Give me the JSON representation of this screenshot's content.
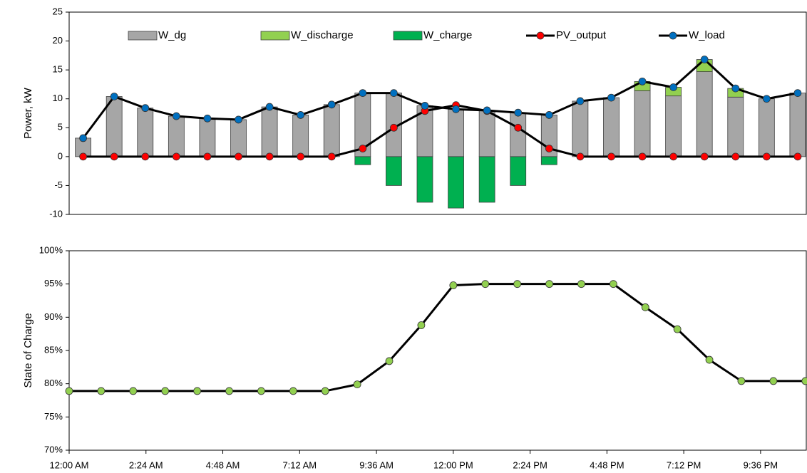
{
  "chart_data": [
    {
      "type": "combo",
      "ylabel": "Power, kW",
      "x": [
        0,
        1,
        2,
        3,
        4,
        5,
        6,
        7,
        8,
        9,
        10,
        11,
        12,
        13,
        14,
        15,
        16,
        17,
        18,
        19,
        20,
        21,
        22,
        23
      ],
      "xlim": [
        -0.45,
        23.3
      ],
      "ylim": [
        -10,
        25
      ],
      "yticks": [
        -10,
        -5,
        0,
        5,
        10,
        15,
        20,
        25
      ],
      "series": [
        {
          "name": "W_dg",
          "type": "bar",
          "color": "#a6a6a6",
          "values": [
            3.2,
            10.4,
            8.4,
            7.0,
            6.6,
            6.4,
            8.6,
            7.2,
            9.0,
            11.0,
            11.0,
            8.8,
            8.2,
            8.0,
            7.6,
            7.2,
            9.6,
            10.2,
            11.4,
            10.5,
            14.7,
            10.3,
            10.0,
            11.0
          ]
        },
        {
          "name": "W_discharge",
          "type": "bar",
          "color": "#92d050",
          "values": [
            0,
            0,
            0,
            0,
            0,
            0,
            0,
            0,
            0,
            0,
            0,
            0,
            0,
            0,
            0,
            0,
            0,
            0,
            1.6,
            1.5,
            2.1,
            1.5,
            0,
            0
          ]
        },
        {
          "name": "W_charge",
          "type": "bar",
          "color": "#00b050",
          "values": [
            0,
            0,
            0,
            0,
            0,
            0,
            0,
            0,
            0,
            -1.4,
            -5.0,
            -7.9,
            -8.9,
            -7.9,
            -5.0,
            -1.4,
            0,
            0,
            0,
            0,
            0,
            0,
            0,
            0
          ]
        },
        {
          "name": "PV_output",
          "type": "line",
          "color": "#ff0000",
          "line_color": "#000000",
          "values": [
            0,
            0,
            0,
            0,
            0,
            0,
            0,
            0,
            0,
            1.4,
            5.0,
            7.9,
            8.9,
            7.9,
            5.0,
            1.4,
            0,
            0,
            0,
            0,
            0,
            0,
            0,
            0
          ]
        },
        {
          "name": "W_load",
          "type": "line",
          "color": "#0070c0",
          "line_color": "#000000",
          "values": [
            3.2,
            10.4,
            8.4,
            7.0,
            6.6,
            6.4,
            8.6,
            7.2,
            9.0,
            11.0,
            11.0,
            8.8,
            8.2,
            8.0,
            7.6,
            7.2,
            9.6,
            10.2,
            13.0,
            12.0,
            16.8,
            11.8,
            10.0,
            11.0
          ]
        }
      ],
      "legend": "top"
    },
    {
      "type": "line",
      "ylabel": "State of Charge",
      "x": [
        0,
        1,
        2,
        3,
        4,
        5,
        6,
        7,
        8,
        9,
        10,
        11,
        12,
        13,
        14,
        15,
        16,
        17,
        18,
        19,
        20,
        21,
        22,
        23
      ],
      "xlim": [
        0,
        23.05
      ],
      "ylim": [
        70,
        100
      ],
      "xticks": [
        {
          "value": 0,
          "label": "12:00 AM"
        },
        {
          "value": 2.4,
          "label": "2:24 AM"
        },
        {
          "value": 4.8,
          "label": "4:48 AM"
        },
        {
          "value": 7.2,
          "label": "7:12 AM"
        },
        {
          "value": 9.6,
          "label": "9:36 AM"
        },
        {
          "value": 12,
          "label": "12:00 PM"
        },
        {
          "value": 14.4,
          "label": "2:24 PM"
        },
        {
          "value": 16.8,
          "label": "4:48 PM"
        },
        {
          "value": 19.2,
          "label": "7:12 PM"
        },
        {
          "value": 21.6,
          "label": "9:36 PM"
        }
      ],
      "yticks": [
        {
          "value": 70,
          "label": "70%"
        },
        {
          "value": 75,
          "label": "75%"
        },
        {
          "value": 80,
          "label": "80%"
        },
        {
          "value": 85,
          "label": "85%"
        },
        {
          "value": 90,
          "label": "90%"
        },
        {
          "value": 95,
          "label": "95%"
        },
        {
          "value": 100,
          "label": "100%"
        }
      ],
      "series": [
        {
          "name": "SOC",
          "type": "line",
          "color": "#92d050",
          "line_color": "#000000",
          "values": [
            78.9,
            78.9,
            78.9,
            78.9,
            78.9,
            78.9,
            78.9,
            78.9,
            78.9,
            79.9,
            83.4,
            88.8,
            94.8,
            95.0,
            95.0,
            95.0,
            95.0,
            95.0,
            91.5,
            88.2,
            83.6,
            80.4,
            80.4,
            80.4
          ]
        }
      ]
    }
  ]
}
